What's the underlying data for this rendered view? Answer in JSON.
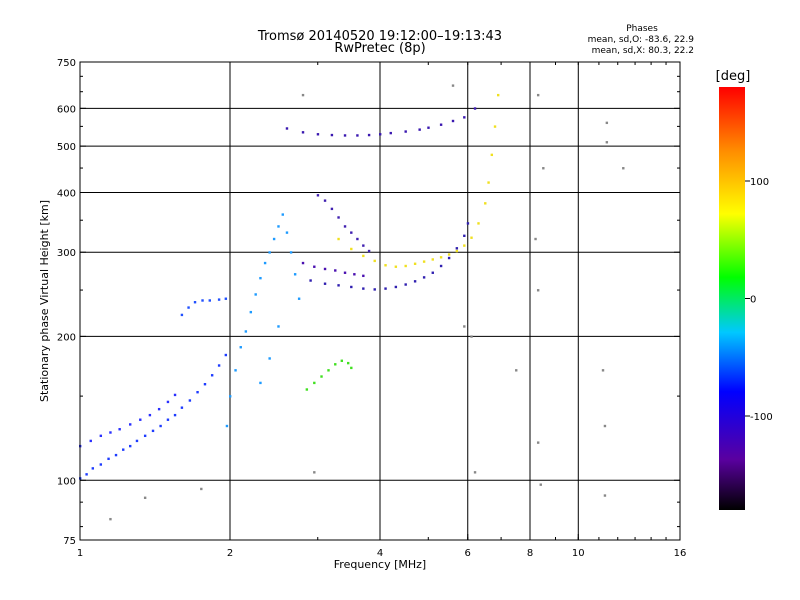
{
  "chart_data": {
    "type": "scatter",
    "title": "Tromsø 20140520 19:12:00–19:13:43",
    "subtitle": "RwPretec (8p)",
    "xlabel": "Frequency [MHz]",
    "ylabel": "Stationary phase Virtual Height [km]",
    "x_scale": "log",
    "y_scale": "log",
    "xlim": [
      1,
      16
    ],
    "ylim": [
      75,
      750
    ],
    "x_ticks": [
      1,
      2,
      4,
      6,
      8,
      10,
      16
    ],
    "y_ticks": [
      75,
      100,
      200,
      300,
      400,
      500,
      600,
      750
    ],
    "x_gridlines": [
      2,
      4,
      6,
      8,
      10
    ],
    "y_gridlines": [
      100,
      200,
      300,
      400,
      500,
      600
    ],
    "grid": true,
    "stats": {
      "header": "Phases",
      "line_o": "mean, sd,O: -83.6, 22.9",
      "line_x": "mean, sd,X:  80.3, 22.2"
    },
    "colorbar": {
      "label": "[deg]",
      "range": [
        -180,
        180
      ],
      "ticks": [
        100,
        0,
        -100
      ],
      "colormap": "rainbow",
      "colors": [
        "#000000",
        "#5a00a0",
        "#0000ff",
        "#00c8ff",
        "#00ff00",
        "#ffff00",
        "#ff8c00",
        "#ff0000"
      ]
    },
    "series": [
      {
        "trace": "low-E-trace",
        "color": "#1e3cff",
        "points": [
          [
            1.0,
            101
          ],
          [
            1.03,
            103
          ],
          [
            1.06,
            106
          ],
          [
            1.1,
            108
          ],
          [
            1.14,
            111
          ],
          [
            1.18,
            113
          ],
          [
            1.22,
            116
          ],
          [
            1.26,
            118
          ],
          [
            1.3,
            121
          ],
          [
            1.35,
            124
          ],
          [
            1.4,
            127
          ],
          [
            1.45,
            130
          ],
          [
            1.5,
            134
          ],
          [
            1.55,
            137
          ],
          [
            1.6,
            142
          ],
          [
            1.66,
            147
          ],
          [
            1.72,
            153
          ],
          [
            1.78,
            159
          ],
          [
            1.84,
            166
          ],
          [
            1.9,
            174
          ],
          [
            1.96,
            183
          ]
        ]
      },
      {
        "trace": "lower-left-trace",
        "color": "#2a30ff",
        "points": [
          [
            1.0,
            118
          ],
          [
            1.05,
            121
          ],
          [
            1.1,
            124
          ],
          [
            1.15,
            126
          ],
          [
            1.2,
            128
          ],
          [
            1.26,
            131
          ],
          [
            1.32,
            134
          ],
          [
            1.38,
            137
          ],
          [
            1.44,
            141
          ],
          [
            1.5,
            146
          ],
          [
            1.55,
            151
          ]
        ]
      },
      {
        "trace": "short-F1-trace",
        "color": "#2050ff",
        "points": [
          [
            1.6,
            222
          ],
          [
            1.65,
            230
          ],
          [
            1.7,
            236
          ],
          [
            1.76,
            238
          ],
          [
            1.82,
            238
          ],
          [
            1.9,
            239
          ],
          [
            1.96,
            240
          ]
        ]
      },
      {
        "trace": "F-cloud",
        "color": "#1e9bff",
        "points": [
          [
            1.97,
            130
          ],
          [
            2.0,
            150
          ],
          [
            2.05,
            170
          ],
          [
            2.1,
            190
          ],
          [
            2.15,
            205
          ],
          [
            2.2,
            225
          ],
          [
            2.25,
            245
          ],
          [
            2.3,
            265
          ],
          [
            2.35,
            285
          ],
          [
            2.4,
            300
          ],
          [
            2.45,
            320
          ],
          [
            2.5,
            340
          ],
          [
            2.55,
            360
          ],
          [
            2.6,
            330
          ],
          [
            2.65,
            300
          ],
          [
            2.7,
            270
          ],
          [
            2.75,
            240
          ],
          [
            2.5,
            210
          ],
          [
            2.4,
            180
          ],
          [
            2.3,
            160
          ]
        ]
      },
      {
        "trace": "green-cluster",
        "color": "#40e020",
        "points": [
          [
            2.85,
            155
          ],
          [
            2.95,
            160
          ],
          [
            3.05,
            165
          ],
          [
            3.15,
            170
          ],
          [
            3.25,
            175
          ],
          [
            3.35,
            178
          ],
          [
            3.45,
            176
          ],
          [
            3.5,
            172
          ]
        ]
      },
      {
        "trace": "F2-o-lower",
        "color": "#3020b0",
        "points": [
          [
            2.9,
            262
          ],
          [
            3.1,
            258
          ],
          [
            3.3,
            256
          ],
          [
            3.5,
            254
          ],
          [
            3.7,
            252
          ],
          [
            3.9,
            251
          ],
          [
            4.1,
            252
          ],
          [
            4.3,
            254
          ],
          [
            4.5,
            257
          ],
          [
            4.7,
            261
          ],
          [
            4.9,
            266
          ],
          [
            5.1,
            272
          ],
          [
            5.3,
            281
          ],
          [
            5.5,
            292
          ],
          [
            5.7,
            306
          ],
          [
            5.9,
            325
          ],
          [
            6.0,
            345
          ]
        ]
      },
      {
        "trace": "F2-o-upper",
        "color": "#4a10b0",
        "points": [
          [
            2.8,
            285
          ],
          [
            2.95,
            280
          ],
          [
            3.1,
            277
          ],
          [
            3.25,
            275
          ],
          [
            3.4,
            272
          ],
          [
            3.55,
            270
          ],
          [
            3.7,
            268
          ]
        ]
      },
      {
        "trace": "F2-x-trace",
        "color": "#f0e020",
        "points": [
          [
            3.3,
            320
          ],
          [
            3.5,
            305
          ],
          [
            3.7,
            295
          ],
          [
            3.9,
            288
          ],
          [
            4.1,
            282
          ],
          [
            4.3,
            280
          ],
          [
            4.5,
            281
          ],
          [
            4.7,
            284
          ],
          [
            4.9,
            287
          ],
          [
            5.1,
            290
          ],
          [
            5.3,
            293
          ],
          [
            5.5,
            297
          ],
          [
            5.7,
            302
          ],
          [
            5.9,
            310
          ],
          [
            6.1,
            322
          ],
          [
            6.3,
            345
          ],
          [
            6.5,
            380
          ],
          [
            6.6,
            420
          ],
          [
            6.7,
            480
          ],
          [
            6.8,
            550
          ],
          [
            6.9,
            640
          ]
        ]
      },
      {
        "trace": "hook-descent",
        "color": "#4020b0",
        "points": [
          [
            3.0,
            395
          ],
          [
            3.1,
            385
          ],
          [
            3.2,
            370
          ],
          [
            3.3,
            355
          ],
          [
            3.4,
            340
          ],
          [
            3.5,
            330
          ],
          [
            3.6,
            320
          ],
          [
            3.7,
            310
          ],
          [
            3.8,
            302
          ]
        ]
      },
      {
        "trace": "upper-echo-trace",
        "color": "#3a18b0",
        "points": [
          [
            2.6,
            545
          ],
          [
            2.8,
            535
          ],
          [
            3.0,
            530
          ],
          [
            3.2,
            528
          ],
          [
            3.4,
            527
          ],
          [
            3.6,
            527
          ],
          [
            3.8,
            528
          ],
          [
            4.0,
            530
          ],
          [
            4.2,
            533
          ],
          [
            4.5,
            537
          ],
          [
            4.8,
            542
          ],
          [
            5.0,
            547
          ],
          [
            5.3,
            555
          ],
          [
            5.6,
            565
          ],
          [
            5.9,
            575
          ],
          [
            6.2,
            600
          ]
        ]
      },
      {
        "trace": "scattered",
        "color": "#888888",
        "points": [
          [
            1.15,
            83
          ],
          [
            1.35,
            92
          ],
          [
            1.75,
            96
          ],
          [
            2.95,
            104
          ],
          [
            6.2,
            104
          ],
          [
            8.4,
            98
          ],
          [
            11.3,
            93
          ],
          [
            8.3,
            120
          ],
          [
            11.2,
            170
          ],
          [
            11.3,
            130
          ],
          [
            8.3,
            250
          ],
          [
            8.2,
            320
          ],
          [
            8.5,
            450
          ],
          [
            11.4,
            510
          ],
          [
            11.4,
            560
          ],
          [
            12.3,
            450
          ],
          [
            7.5,
            170
          ],
          [
            6.1,
            200
          ],
          [
            5.9,
            210
          ],
          [
            2.8,
            640
          ],
          [
            5.6,
            670
          ],
          [
            8.3,
            640
          ]
        ]
      }
    ]
  }
}
